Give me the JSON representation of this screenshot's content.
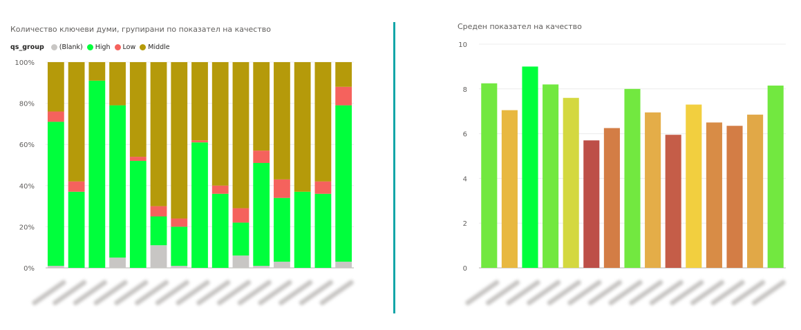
{
  "left_chart": {
    "title": "Количество ключеви думи, групирани по показател на качество",
    "legend_label": "qs_group",
    "legend": [
      {
        "name": "(Blank)",
        "color": "#c8c6c4"
      },
      {
        "name": "High",
        "color": "#00ff3c"
      },
      {
        "name": "Low",
        "color": "#f5625d"
      },
      {
        "name": "Middle",
        "color": "#b59a0a"
      }
    ]
  },
  "right_chart": {
    "title": "Среден показател на качество"
  },
  "chart_data": [
    {
      "type": "bar",
      "stacked": "100%",
      "title": "Количество ключеви думи, групирани по показател на качество",
      "legend_title": "qs_group",
      "legend_position": "top-left",
      "ylim": [
        0,
        100
      ],
      "y_ticks": [
        "0%",
        "20%",
        "40%",
        "60%",
        "80%",
        "100%"
      ],
      "grid": true,
      "categories_count": 15,
      "category_labels_blurred": true,
      "series": [
        {
          "name": "(Blank)",
          "color": "#c8c6c4",
          "values": [
            1,
            0,
            0,
            5,
            0,
            11,
            1,
            0,
            0,
            6,
            1,
            3,
            0,
            0,
            3
          ]
        },
        {
          "name": "High",
          "color": "#00ff3c",
          "values": [
            70,
            37,
            91,
            74,
            52,
            14,
            19,
            61,
            36,
            16,
            50,
            31,
            37,
            36,
            76
          ]
        },
        {
          "name": "Low",
          "color": "#f5625d",
          "values": [
            5,
            5,
            0,
            0,
            2,
            5,
            4,
            1,
            4,
            7,
            6,
            9,
            0,
            6,
            9
          ]
        },
        {
          "name": "Middle",
          "color": "#b59a0a",
          "values": [
            24,
            58,
            9,
            21,
            46,
            70,
            76,
            38,
            60,
            71,
            43,
            57,
            63,
            58,
            12
          ]
        }
      ]
    },
    {
      "type": "bar",
      "title": "Среден показател на качество",
      "ylim": [
        0,
        10
      ],
      "y_ticks": [
        "0",
        "2",
        "4",
        "6",
        "8",
        "10"
      ],
      "grid": true,
      "categories_count": 15,
      "category_labels_blurred": true,
      "values": [
        8.25,
        7.05,
        9.0,
        8.2,
        7.6,
        5.7,
        6.25,
        8.0,
        6.95,
        5.95,
        7.3,
        6.5,
        6.35,
        6.85,
        8.15
      ],
      "colors": [
        "#72e840",
        "#e8b840",
        "#00ff3c",
        "#72e840",
        "#d4d840",
        "#bd4f48",
        "#d37d45",
        "#72e840",
        "#e4ad48",
        "#c55d48",
        "#f2cf3f",
        "#d88c46",
        "#d37d45",
        "#e1a847",
        "#72e840"
      ]
    }
  ]
}
